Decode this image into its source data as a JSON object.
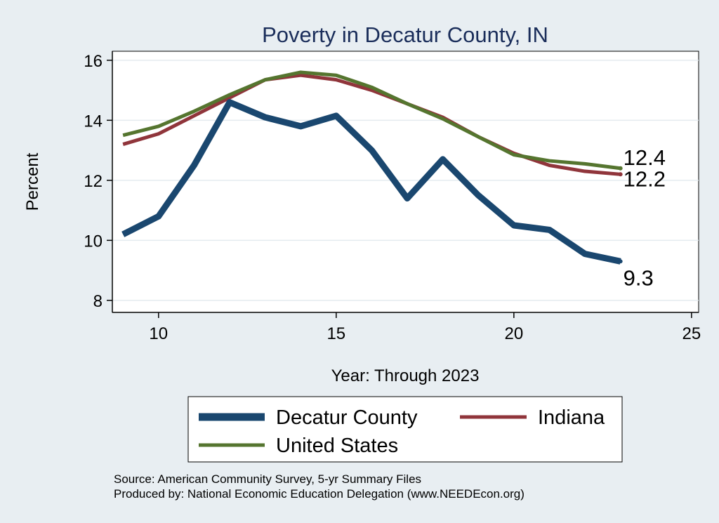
{
  "chart_data": {
    "type": "line",
    "title": "Poverty in Decatur County, IN",
    "xlabel": "Year: Through 2023",
    "ylabel": "Percent",
    "xlim": [
      8.7,
      25.2
    ],
    "ylim": [
      7.6,
      16.3
    ],
    "xticks": [
      10,
      15,
      20,
      25
    ],
    "yticks": [
      8,
      10,
      12,
      14,
      16
    ],
    "grid": true,
    "legend_position": "bottom",
    "series": [
      {
        "name": "Decatur County",
        "color": "#1a476f",
        "x": [
          9,
          10,
          11,
          12,
          13,
          14,
          15,
          16,
          17,
          18,
          19,
          20,
          21,
          22,
          23
        ],
        "values": [
          10.2,
          10.8,
          12.5,
          14.6,
          14.1,
          13.8,
          14.15,
          13.0,
          11.4,
          12.7,
          11.5,
          10.5,
          10.35,
          9.55,
          9.3
        ],
        "end_label": "9.3"
      },
      {
        "name": "Indiana",
        "color": "#90353b",
        "x": [
          9,
          10,
          11,
          12,
          13,
          14,
          15,
          16,
          17,
          18,
          19,
          20,
          21,
          22,
          23
        ],
        "values": [
          13.2,
          13.55,
          14.15,
          14.75,
          15.35,
          15.5,
          15.35,
          15.0,
          14.55,
          14.1,
          13.45,
          12.9,
          12.5,
          12.3,
          12.2
        ],
        "end_label": "12.2"
      },
      {
        "name": "United States",
        "color": "#55752f",
        "x": [
          9,
          10,
          11,
          12,
          13,
          14,
          15,
          16,
          17,
          18,
          19,
          20,
          21,
          22,
          23
        ],
        "values": [
          13.5,
          13.8,
          14.3,
          14.85,
          15.35,
          15.6,
          15.5,
          15.1,
          14.55,
          14.05,
          13.45,
          12.85,
          12.65,
          12.55,
          12.4
        ],
        "end_label": "12.4"
      }
    ],
    "notes": [
      "Source: American Community Survey, 5-yr Summary Files",
      "Produced by: National Economic Education Delegation (www.NEEDEcon.org)"
    ]
  }
}
